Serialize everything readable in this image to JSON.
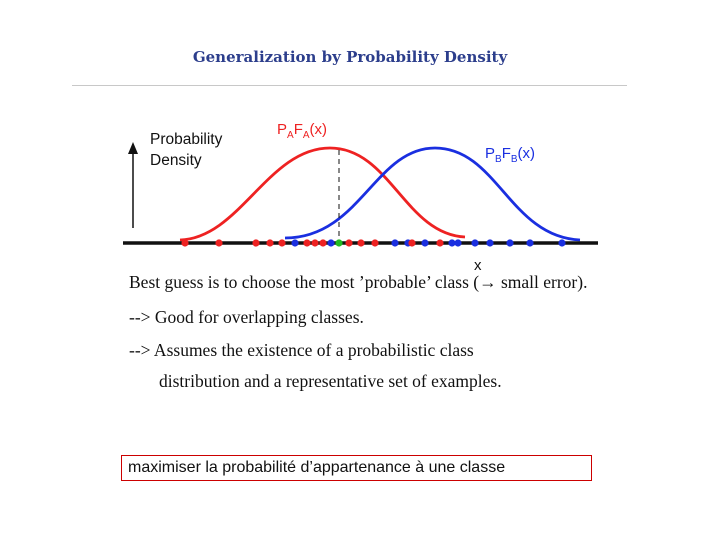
{
  "slide": {
    "title": "Generalization by Probability Density",
    "diagram": {
      "y_axis_label_line1": "Probability",
      "y_axis_label_line2": "Density",
      "x_axis_label": "x",
      "curve_a_label": {
        "p": "P",
        "p_sub": "A",
        "f": "F",
        "f_sub": "A",
        "arg": "(x)"
      },
      "curve_b_label": {
        "p": "P",
        "p_sub": "B",
        "f": "F",
        "f_sub": "B",
        "arg": "(x)"
      },
      "colors": {
        "class_a": "#ee2222",
        "class_b": "#1a2fe0",
        "boundary_point": "#22bb22",
        "axis": "#111111"
      }
    },
    "bullets": {
      "line1": "Best guess is to choose the most ’probable’ class (→ small error).",
      "line2": "--> Good for overlapping classes.",
      "line3": "--> Assumes the existence of a probabilistic class",
      "line4": "distribution and a representative set of examples."
    },
    "boxed_note": "maximiser la probabilité d’appartenance à une classe"
  }
}
